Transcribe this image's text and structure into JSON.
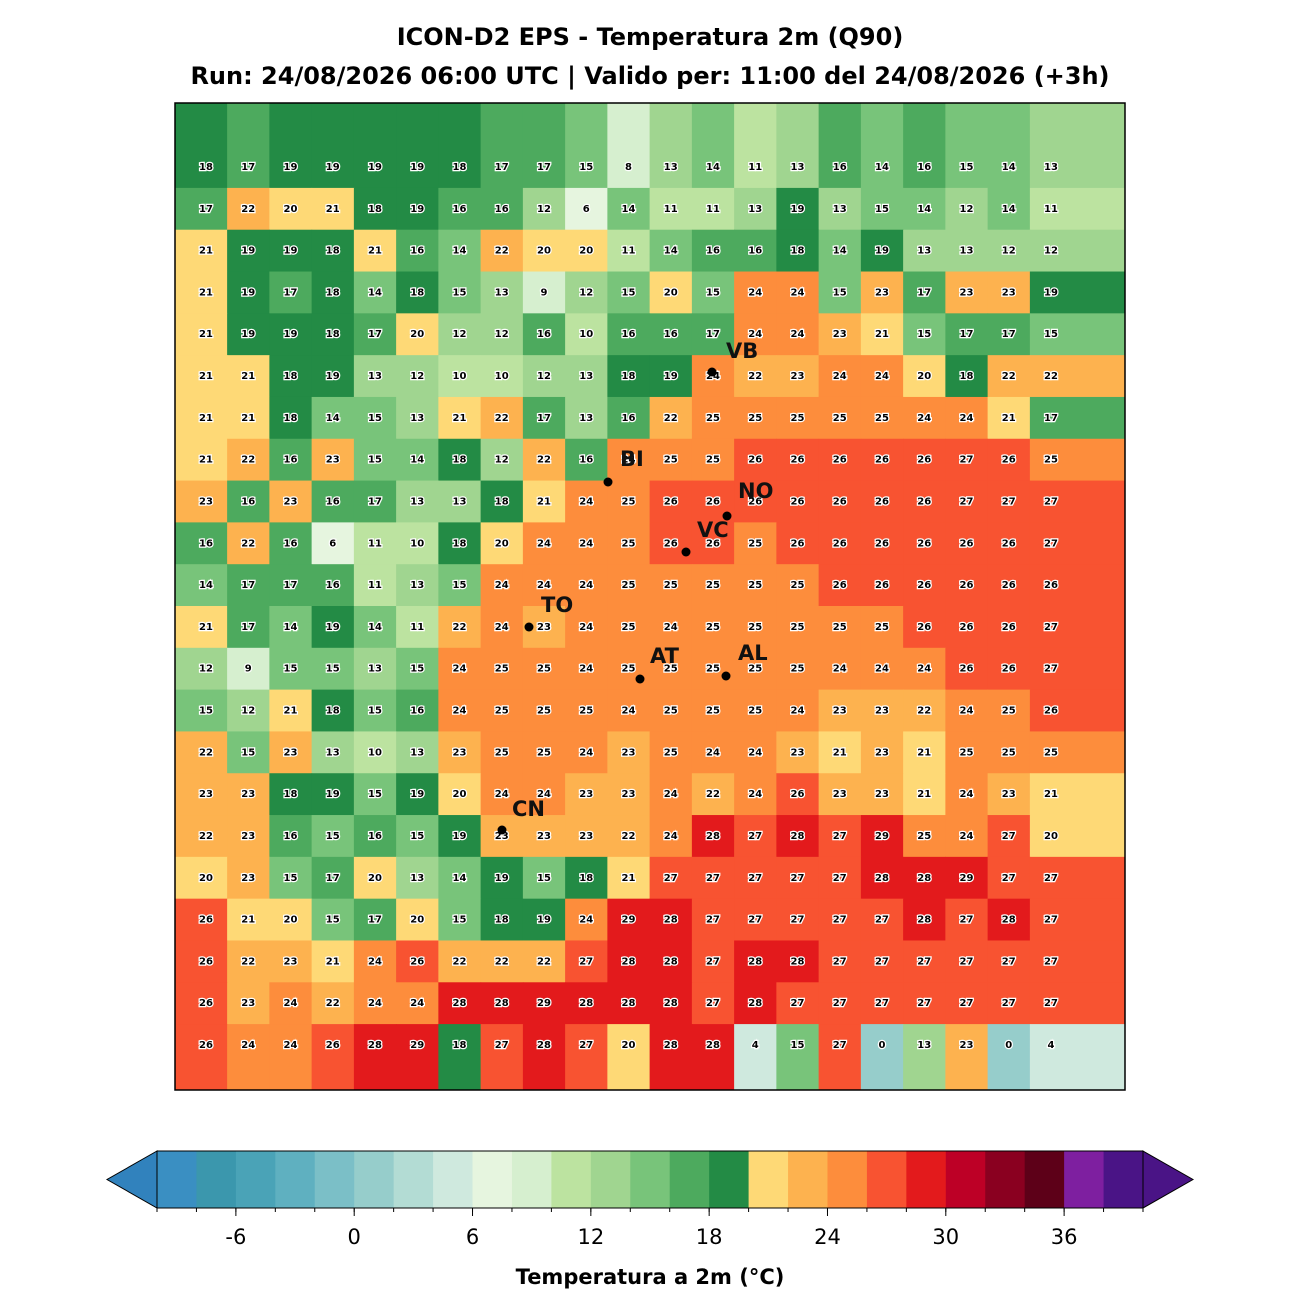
{
  "title": "ICON-D2 EPS - Temperatura 2m (Q90)",
  "subtitle": "Run: 24/08/2026 06:00 UTC | Valido per: 11:00 del 24/08/2026 (+3h)",
  "map": {
    "grid": [
      [
        18,
        17,
        19,
        19,
        19,
        19,
        18,
        17,
        17,
        15,
        8,
        13,
        14,
        11,
        13,
        16,
        14,
        16,
        15,
        14,
        13
      ],
      [
        17,
        22,
        20,
        21,
        18,
        19,
        16,
        16,
        12,
        6,
        14,
        11,
        11,
        13,
        19,
        13,
        15,
        14,
        12,
        14,
        11
      ],
      [
        21,
        19,
        19,
        18,
        21,
        16,
        14,
        22,
        20,
        20,
        11,
        14,
        16,
        16,
        18,
        14,
        19,
        13,
        13,
        12,
        12
      ],
      [
        21,
        19,
        17,
        18,
        14,
        18,
        15,
        13,
        9,
        12,
        15,
        20,
        15,
        24,
        24,
        15,
        23,
        17,
        23,
        23,
        19
      ],
      [
        21,
        19,
        19,
        18,
        17,
        20,
        12,
        12,
        16,
        10,
        16,
        16,
        17,
        24,
        24,
        23,
        21,
        15,
        17,
        17,
        15
      ],
      [
        21,
        21,
        18,
        19,
        13,
        12,
        10,
        10,
        12,
        13,
        18,
        19,
        24,
        22,
        23,
        24,
        24,
        20,
        18,
        22,
        22
      ],
      [
        21,
        21,
        18,
        14,
        15,
        13,
        21,
        22,
        17,
        13,
        16,
        22,
        25,
        25,
        25,
        25,
        25,
        24,
        24,
        21,
        17
      ],
      [
        21,
        22,
        16,
        23,
        15,
        14,
        18,
        12,
        22,
        16,
        24,
        25,
        25,
        26,
        26,
        26,
        26,
        26,
        27,
        26,
        25
      ],
      [
        23,
        16,
        23,
        16,
        17,
        13,
        13,
        18,
        21,
        24,
        25,
        26,
        26,
        26,
        26,
        26,
        26,
        26,
        27,
        27,
        27
      ],
      [
        16,
        22,
        16,
        6,
        11,
        10,
        18,
        20,
        24,
        24,
        25,
        26,
        26,
        25,
        26,
        26,
        26,
        26,
        26,
        26,
        27
      ],
      [
        14,
        17,
        17,
        16,
        11,
        13,
        15,
        24,
        24,
        24,
        25,
        25,
        25,
        25,
        25,
        26,
        26,
        26,
        26,
        26,
        26
      ],
      [
        21,
        17,
        14,
        19,
        14,
        11,
        22,
        24,
        23,
        24,
        25,
        24,
        25,
        25,
        25,
        25,
        25,
        26,
        26,
        26,
        27
      ],
      [
        12,
        9,
        15,
        15,
        13,
        15,
        24,
        25,
        25,
        24,
        25,
        25,
        25,
        25,
        25,
        24,
        24,
        24,
        26,
        26,
        27
      ],
      [
        15,
        12,
        21,
        18,
        15,
        16,
        24,
        25,
        25,
        25,
        24,
        25,
        25,
        25,
        24,
        23,
        23,
        22,
        24,
        25,
        26
      ],
      [
        22,
        15,
        23,
        13,
        10,
        13,
        23,
        25,
        25,
        24,
        23,
        25,
        24,
        24,
        23,
        21,
        23,
        21,
        25,
        25,
        25
      ],
      [
        23,
        23,
        18,
        19,
        15,
        19,
        20,
        24,
        24,
        23,
        23,
        24,
        22,
        24,
        26,
        23,
        23,
        21,
        24,
        23,
        21
      ],
      [
        22,
        23,
        16,
        15,
        16,
        15,
        19,
        23,
        23,
        23,
        22,
        24,
        28,
        27,
        28,
        27,
        29,
        25,
        24,
        27,
        20
      ],
      [
        20,
        23,
        15,
        17,
        20,
        13,
        14,
        19,
        15,
        18,
        21,
        27,
        27,
        27,
        27,
        27,
        28,
        28,
        29,
        27,
        27
      ],
      [
        26,
        21,
        20,
        15,
        17,
        20,
        15,
        18,
        19,
        24,
        29,
        28,
        27,
        27,
        27,
        27,
        27,
        28,
        27,
        28,
        27
      ],
      [
        26,
        22,
        23,
        21,
        24,
        26,
        22,
        22,
        22,
        27,
        28,
        28,
        27,
        28,
        28,
        27,
        27,
        27,
        27,
        27,
        27
      ],
      [
        26,
        23,
        24,
        22,
        24,
        24,
        28,
        28,
        29,
        28,
        28,
        28,
        27,
        28,
        27,
        27,
        27,
        27,
        27,
        27,
        27
      ],
      [
        26,
        24,
        24,
        26,
        28,
        29,
        18,
        27,
        28,
        27,
        20,
        28,
        28,
        4,
        15,
        27,
        0,
        13,
        23,
        0,
        4
      ]
    ],
    "cities": [
      "VB",
      "BI",
      "NO",
      "VC",
      "TO",
      "AT",
      "AL",
      "CN"
    ]
  },
  "colorbar": {
    "label": "Temperatura a 2m (°C)",
    "lim": [
      -10,
      40
    ],
    "ticks": [
      -6,
      0,
      6,
      12,
      18,
      24,
      30,
      36
    ],
    "colors": [
      "#3a8fc2",
      "#3b97ad",
      "#4aa3b7",
      "#5fb0c0",
      "#7bbfc7",
      "#96cdcb",
      "#b3dcd4",
      "#cfe9de",
      "#e6f5df",
      "#d6efcf",
      "#bce3a0",
      "#a0d590",
      "#78c47a",
      "#4daa5e",
      "#238b45",
      "#fed976",
      "#fdb24f",
      "#fd8d3c",
      "#f85331",
      "#e31a1c",
      "#bd0026",
      "#8a0020",
      "#5d0018",
      "#7e1fa0",
      "#4a1486"
    ]
  }
}
